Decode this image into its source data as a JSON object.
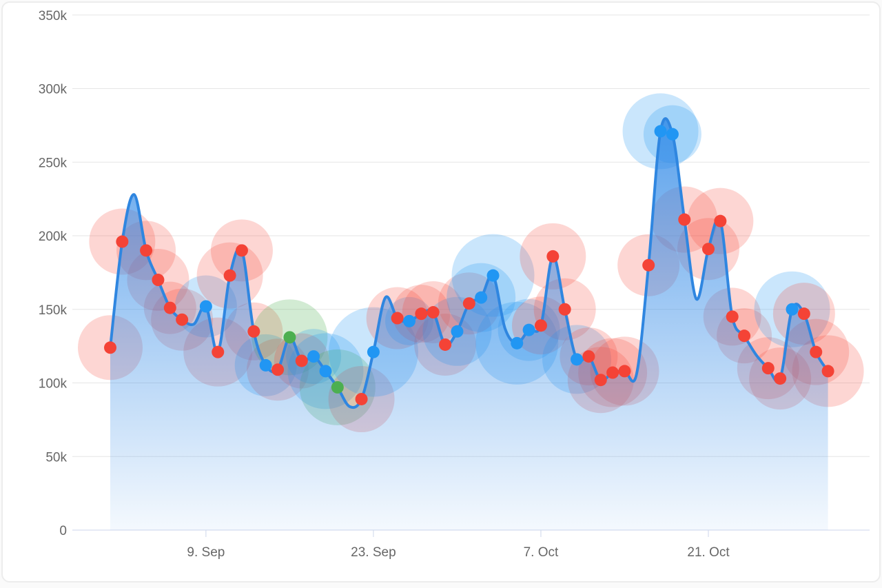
{
  "chart_data": {
    "type": "area",
    "subtype": "spline-area-with-event-markers",
    "title": "",
    "y_axis": {
      "min": 0,
      "max": 350000,
      "step": 50000,
      "tick_labels": [
        "0",
        "50k",
        "100k",
        "150k",
        "200k",
        "250k",
        "300k",
        "350k"
      ],
      "grid": true
    },
    "x_axis": {
      "ticks": [
        {
          "day": 8,
          "label": "9. Sep"
        },
        {
          "day": 22,
          "label": "23. Sep"
        },
        {
          "day": 36,
          "label": "7. Oct"
        },
        {
          "day": 50,
          "label": "21. Oct"
        }
      ]
    },
    "legend_position": "none",
    "points": [
      {
        "date": "1. Sep",
        "value": 124000,
        "marker": "red",
        "halo_r": 47
      },
      {
        "date": "2. Sep",
        "value": 196000,
        "marker": "red",
        "halo_r": 48
      },
      {
        "date": "3. Sep",
        "value": 228000,
        "marker": null,
        "halo_r": 0
      },
      {
        "date": "4. Sep",
        "value": 190000,
        "marker": "red",
        "halo_r": 43
      },
      {
        "date": "5. Sep",
        "value": 170000,
        "marker": "red",
        "halo_r": 45
      },
      {
        "date": "6. Sep",
        "value": 151000,
        "marker": "red",
        "halo_r": 38
      },
      {
        "date": "7. Sep",
        "value": 143000,
        "marker": "red",
        "halo_r": 45
      },
      {
        "date": "8. Sep",
        "value": 140000,
        "marker": null,
        "halo_r": 0
      },
      {
        "date": "9. Sep",
        "value": 152000,
        "marker": "blue",
        "halo_r": 45
      },
      {
        "date": "10. Sep",
        "value": 121000,
        "marker": "red",
        "halo_r": 50
      },
      {
        "date": "11. Sep",
        "value": 173000,
        "marker": "red",
        "halo_r": 48
      },
      {
        "date": "12. Sep",
        "value": 190000,
        "marker": "red",
        "halo_r": 45
      },
      {
        "date": "13. Sep",
        "value": 135000,
        "marker": "red",
        "halo_r": 42
      },
      {
        "date": "14. Sep",
        "value": 112000,
        "marker": "blue",
        "halo_r": 45
      },
      {
        "date": "15. Sep",
        "value": 109000,
        "marker": "red",
        "halo_r": 45
      },
      {
        "date": "16. Sep",
        "value": 131000,
        "marker": "green",
        "halo_r": 55
      },
      {
        "date": "17. Sep",
        "value": 115000,
        "marker": "red",
        "halo_r": 40
      },
      {
        "date": "18. Sep",
        "value": 118000,
        "marker": "blue",
        "halo_r": 40
      },
      {
        "date": "19. Sep",
        "value": 108000,
        "marker": "blue",
        "halo_r": 55
      },
      {
        "date": "20. Sep",
        "value": 97000,
        "marker": "green",
        "halo_r": 55
      },
      {
        "date": "21. Sep",
        "value": 84000,
        "marker": null,
        "halo_r": 0
      },
      {
        "date": "22. Sep",
        "value": 89000,
        "marker": "red",
        "halo_r": 48
      },
      {
        "date": "23. Sep",
        "value": 121000,
        "marker": "blue",
        "halo_r": 65
      },
      {
        "date": "24. Sep",
        "value": 158000,
        "marker": null,
        "halo_r": 0
      },
      {
        "date": "25. Sep",
        "value": 144000,
        "marker": "red",
        "halo_r": 45
      },
      {
        "date": "26. Sep",
        "value": 142000,
        "marker": "blue",
        "halo_r": 35
      },
      {
        "date": "27. Sep",
        "value": 147000,
        "marker": "red",
        "halo_r": 42
      },
      {
        "date": "28. Sep",
        "value": 148000,
        "marker": "red",
        "halo_r": 45
      },
      {
        "date": "29. Sep",
        "value": 126000,
        "marker": "red",
        "halo_r": 45
      },
      {
        "date": "30. Sep",
        "value": 135000,
        "marker": "blue",
        "halo_r": 50
      },
      {
        "date": "1. Oct",
        "value": 154000,
        "marker": "red",
        "halo_r": 45
      },
      {
        "date": "2. Oct",
        "value": 158000,
        "marker": "blue",
        "halo_r": 50
      },
      {
        "date": "3. Oct",
        "value": 173000,
        "marker": "blue",
        "halo_r": 60
      },
      {
        "date": "4. Oct",
        "value": 137000,
        "marker": null,
        "halo_r": 0
      },
      {
        "date": "5. Oct",
        "value": 127000,
        "marker": "blue",
        "halo_r": 60
      },
      {
        "date": "6. Oct",
        "value": 136000,
        "marker": "blue",
        "halo_r": 45
      },
      {
        "date": "7. Oct",
        "value": 139000,
        "marker": "red",
        "halo_r": 42
      },
      {
        "date": "8. Oct",
        "value": 186000,
        "marker": "red",
        "halo_r": 48
      },
      {
        "date": "9. Oct",
        "value": 150000,
        "marker": "red",
        "halo_r": 45
      },
      {
        "date": "10. Oct",
        "value": 116000,
        "marker": "blue",
        "halo_r": 50
      },
      {
        "date": "11. Oct",
        "value": 118000,
        "marker": "red",
        "halo_r": 42
      },
      {
        "date": "12. Oct",
        "value": 102000,
        "marker": "red",
        "halo_r": 48
      },
      {
        "date": "13. Oct",
        "value": 107000,
        "marker": "red",
        "halo_r": 50
      },
      {
        "date": "14. Oct",
        "value": 108000,
        "marker": "red",
        "halo_r": 50
      },
      {
        "date": "15. Oct",
        "value": 106000,
        "marker": null,
        "halo_r": 0
      },
      {
        "date": "16. Oct",
        "value": 180000,
        "marker": "red",
        "halo_r": 45
      },
      {
        "date": "17. Oct",
        "value": 271000,
        "marker": "blue",
        "halo_r": 55
      },
      {
        "date": "18. Oct",
        "value": 269000,
        "marker": "blue",
        "halo_r": 42
      },
      {
        "date": "19. Oct",
        "value": 211000,
        "marker": "red",
        "halo_r": 48
      },
      {
        "date": "20. Oct",
        "value": 157000,
        "marker": null,
        "halo_r": 0
      },
      {
        "date": "21. Oct",
        "value": 191000,
        "marker": "red",
        "halo_r": 45
      },
      {
        "date": "22. Oct",
        "value": 210000,
        "marker": "red",
        "halo_r": 48
      },
      {
        "date": "23. Oct",
        "value": 145000,
        "marker": "red",
        "halo_r": 42
      },
      {
        "date": "24. Oct",
        "value": 132000,
        "marker": "red",
        "halo_r": 40
      },
      {
        "date": "25. Oct",
        "value": 119000,
        "marker": null,
        "halo_r": 0
      },
      {
        "date": "26. Oct",
        "value": 110000,
        "marker": "red",
        "halo_r": 45
      },
      {
        "date": "27. Oct",
        "value": 103000,
        "marker": "red",
        "halo_r": 45
      },
      {
        "date": "28. Oct",
        "value": 150000,
        "marker": "blue",
        "halo_r": 55
      },
      {
        "date": "29. Oct",
        "value": 147000,
        "marker": "red",
        "halo_r": 45
      },
      {
        "date": "30. Oct",
        "value": 121000,
        "marker": "red",
        "halo_r": 48
      },
      {
        "date": "31. Oct",
        "value": 108000,
        "marker": "red",
        "halo_r": 52
      }
    ]
  },
  "colors": {
    "red": "#f44336",
    "blue": "#2196f3",
    "green": "#4caf50",
    "line": "#2f86e0",
    "area_top": "rgba(43,134,230,0.78)",
    "area_bottom": "rgba(43,134,230,0.05)",
    "grid": "#e6e6e6",
    "axis": "#ccd6eb",
    "label": "#666666",
    "card_border": "#ececec",
    "page_bg": "#fafafa"
  }
}
